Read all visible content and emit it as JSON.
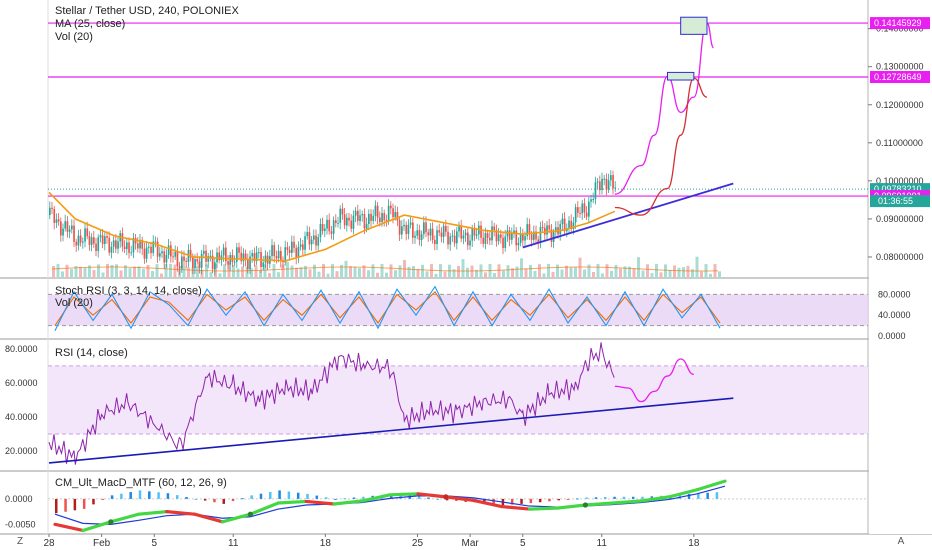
{
  "header": {
    "symbol_line": "Stellar / Tether USD, 240, POLONIEX",
    "ma_line": "MA (25, close)",
    "vol_line": "Vol (20)"
  },
  "price_axis": {
    "ticks": [
      {
        "value": 0.14,
        "label": "0.14000000"
      },
      {
        "value": 0.13,
        "label": "0.13000000"
      },
      {
        "value": 0.12,
        "label": "0.12000000"
      },
      {
        "value": 0.11,
        "label": "0.11000000"
      },
      {
        "value": 0.1,
        "label": "0.10000000"
      },
      {
        "value": 0.09,
        "label": "0.09000000"
      },
      {
        "value": 0.08,
        "label": "0.08000000"
      }
    ],
    "tags": [
      {
        "value": 0.14145929,
        "label": "0.14145929",
        "color": "#e91ef0"
      },
      {
        "value": 0.12728649,
        "label": "0.12728649",
        "color": "#e91ef0"
      },
      {
        "value": 0.0978321,
        "label": "0.09783210",
        "color": "#26a69a"
      },
      {
        "value": 0.09601,
        "label": "0.09601001",
        "color": "#e91ef0"
      }
    ],
    "countdown": "01:36:55"
  },
  "stoch_pane": {
    "title": "Stoch RSI (3, 3, 14, 14, close)",
    "vol_label": "Vol (20)",
    "ticks": [
      "80.0000",
      "40.0000",
      "0.0000"
    ]
  },
  "rsi_pane": {
    "title": "RSI (14, close)",
    "ticks": [
      "80.0000",
      "60.0000",
      "40.0000",
      "20.0000"
    ]
  },
  "macd_pane": {
    "title": "CM_Ult_MacD_MTF (60, 12, 26, 9)",
    "ticks": [
      "0.0000",
      "-0.0050"
    ]
  },
  "time_axis": {
    "labels": [
      "28",
      "Feb",
      "5",
      "11",
      "18",
      "25",
      "Mar",
      "5",
      "11",
      "18"
    ],
    "corner_left": "Z",
    "corner_right": "A"
  },
  "colors": {
    "up": "#26a69a",
    "down": "#ef5350",
    "ma": "#f39c12",
    "magenta": "#e91ef0",
    "trend": "#3c2ddb",
    "rsi": "#8e24aa",
    "stoch_k": "#2196f3",
    "stoch_d": "#ef6c00",
    "band_fill": "#e7d2f5"
  },
  "chart_data": {
    "type": "candlestick",
    "symbol": "Stellar / Tether USD",
    "interval": "240",
    "exchange": "POLONIEX",
    "price_range": [
      0.075,
      0.147
    ],
    "current_price": 0.0978321,
    "horizontal_levels": [
      0.14145929,
      0.12728649,
      0.09601
    ],
    "target_boxes": [
      {
        "date_from": "Mar 16",
        "date_to": "Mar 18",
        "price_low": 0.1265,
        "price_high": 0.1285
      },
      {
        "date_from": "Mar 17",
        "date_to": "Mar 19",
        "price_low": 0.1385,
        "price_high": 0.143
      }
    ],
    "price_path": [
      [
        "Jan 28",
        0.091
      ],
      [
        "Jan 30",
        0.085
      ],
      [
        "Feb 1",
        0.084
      ],
      [
        "Feb 3",
        0.083
      ],
      [
        "Feb 5",
        0.082
      ],
      [
        "Feb 7",
        0.079
      ],
      [
        "Feb 9",
        0.0795
      ],
      [
        "Feb 11",
        0.08
      ],
      [
        "Feb 13",
        0.0795
      ],
      [
        "Feb 15",
        0.081
      ],
      [
        "Feb 17",
        0.085
      ],
      [
        "Feb 19",
        0.09
      ],
      [
        "Feb 21",
        0.09
      ],
      [
        "Feb 23",
        0.0915
      ],
      [
        "Feb 24",
        0.087
      ],
      [
        "Feb 26",
        0.086
      ],
      [
        "Feb 28",
        0.0855
      ],
      [
        "Mar 2",
        0.0858
      ],
      [
        "Mar 4",
        0.085
      ],
      [
        "Mar 6",
        0.086
      ],
      [
        "Mar 8",
        0.0875
      ],
      [
        "Mar 10",
        0.094
      ],
      [
        "Mar 11",
        0.101
      ],
      [
        "Mar 12",
        0.0978
      ]
    ],
    "moving_average_25": [
      [
        "Jan 28",
        0.097
      ],
      [
        "Jan 30",
        0.09
      ],
      [
        "Feb 2",
        0.0855
      ],
      [
        "Feb 5",
        0.0835
      ],
      [
        "Feb 8",
        0.08
      ],
      [
        "Feb 11",
        0.0795
      ],
      [
        "Feb 15",
        0.079
      ],
      [
        "Feb 18",
        0.082
      ],
      [
        "Feb 21",
        0.087
      ],
      [
        "Feb 24",
        0.091
      ],
      [
        "Feb 27",
        0.089
      ],
      [
        "Mar 2",
        0.087
      ],
      [
        "Mar 5",
        0.086
      ],
      [
        "Mar 8",
        0.087
      ],
      [
        "Mar 10",
        0.089
      ],
      [
        "Mar 12",
        0.092
      ]
    ],
    "trendline": [
      [
        "Mar 5",
        0.0825
      ],
      [
        "Mar 21",
        0.0993
      ]
    ],
    "projection_magenta": [
      [
        "Mar 12",
        0.0965
      ],
      [
        "Mar 14",
        0.104
      ],
      [
        "Mar 15",
        0.112
      ],
      [
        "Mar 16",
        0.1275
      ],
      [
        "Mar 17",
        0.118
      ],
      [
        "Mar 18",
        0.122
      ],
      [
        "Mar 19",
        0.1415
      ],
      [
        "Mar 19.5",
        0.135
      ]
    ],
    "projection_red": [
      [
        "Mar 12",
        0.093
      ],
      [
        "Mar 14",
        0.091
      ],
      [
        "Mar 16",
        0.098
      ],
      [
        "Mar 17",
        0.112
      ],
      [
        "Mar 18",
        0.127
      ],
      [
        "Mar 19",
        0.122
      ]
    ],
    "rsi": {
      "levels": [
        70,
        30
      ],
      "trendline": [
        [
          "Jan 28",
          13
        ],
        [
          "Mar 21",
          51
        ]
      ],
      "path": [
        [
          "Jan 28",
          25
        ],
        [
          "Jan 30",
          16
        ],
        [
          "Feb 1",
          42
        ],
        [
          "Feb 3",
          48
        ],
        [
          "Feb 5",
          36
        ],
        [
          "Feb 7",
          22
        ],
        [
          "Feb 9",
          64
        ],
        [
          "Feb 11",
          58
        ],
        [
          "Feb 13",
          50
        ],
        [
          "Feb 15",
          57
        ],
        [
          "Feb 17",
          55
        ],
        [
          "Feb 19",
          75
        ],
        [
          "Feb 21",
          70
        ],
        [
          "Feb 23",
          69
        ],
        [
          "Feb 24",
          38
        ],
        [
          "Feb 26",
          44
        ],
        [
          "Feb 28",
          43
        ],
        [
          "Mar 2",
          49
        ],
        [
          "Mar 4",
          50
        ],
        [
          "Mar 5",
          40
        ],
        [
          "Mar 7",
          54
        ],
        [
          "Mar 9",
          57
        ],
        [
          "Mar 10",
          74
        ],
        [
          "Mar 11",
          78
        ],
        [
          "Mar 12",
          63
        ]
      ],
      "projection": [
        [
          "Mar 12",
          58
        ],
        [
          "Mar 13",
          57
        ],
        [
          "Mar 14",
          49
        ],
        [
          "Mar 15",
          55
        ],
        [
          "Mar 16",
          64
        ],
        [
          "Mar 17",
          74
        ],
        [
          "Mar 18",
          65
        ]
      ]
    },
    "stoch_rsi": {
      "levels": [
        80,
        20
      ],
      "k": [
        10,
        85,
        30,
        80,
        15,
        85,
        60,
        20,
        90,
        40,
        85,
        20,
        80,
        30,
        88,
        25,
        85,
        15,
        90,
        40,
        95,
        20,
        85,
        20,
        80,
        30,
        90,
        25,
        75,
        20,
        85,
        20,
        90,
        35,
        80,
        15
      ],
      "d": [
        20,
        75,
        40,
        70,
        25,
        75,
        65,
        30,
        80,
        50,
        75,
        30,
        70,
        40,
        80,
        35,
        75,
        25,
        80,
        50,
        85,
        30,
        75,
        30,
        70,
        40,
        80,
        35,
        70,
        30,
        75,
        30,
        80,
        45,
        75,
        25
      ]
    },
    "macd": {
      "range": [
        -0.0065,
        0.0045
      ],
      "line": [
        -0.005,
        -0.0062,
        -0.0045,
        -0.003,
        -0.0025,
        -0.003,
        -0.0045,
        -0.003,
        -0.0008,
        -0.0005,
        -0.001,
        -0.0004,
        0.0008,
        0.001,
        0.0004,
        -0.0003,
        -0.0015,
        -0.002,
        -0.0018,
        -0.0012,
        -0.0008,
        -0.0004,
        0.0004,
        0.0018,
        0.0035
      ],
      "signal": [
        -0.003,
        -0.0048,
        -0.005,
        -0.0042,
        -0.0033,
        -0.003,
        -0.0038,
        -0.0035,
        -0.002,
        -0.0012,
        -0.001,
        -0.0007,
        0.0001,
        0.0006,
        0.0006,
        0.0002,
        -0.0006,
        -0.0014,
        -0.0016,
        -0.0014,
        -0.0011,
        -0.0007,
        -0.0001,
        0.001,
        0.0025
      ]
    },
    "date_axis": [
      "28",
      "Feb",
      "5",
      "11",
      "18",
      "25",
      "Mar",
      "5",
      "11",
      "18"
    ]
  }
}
